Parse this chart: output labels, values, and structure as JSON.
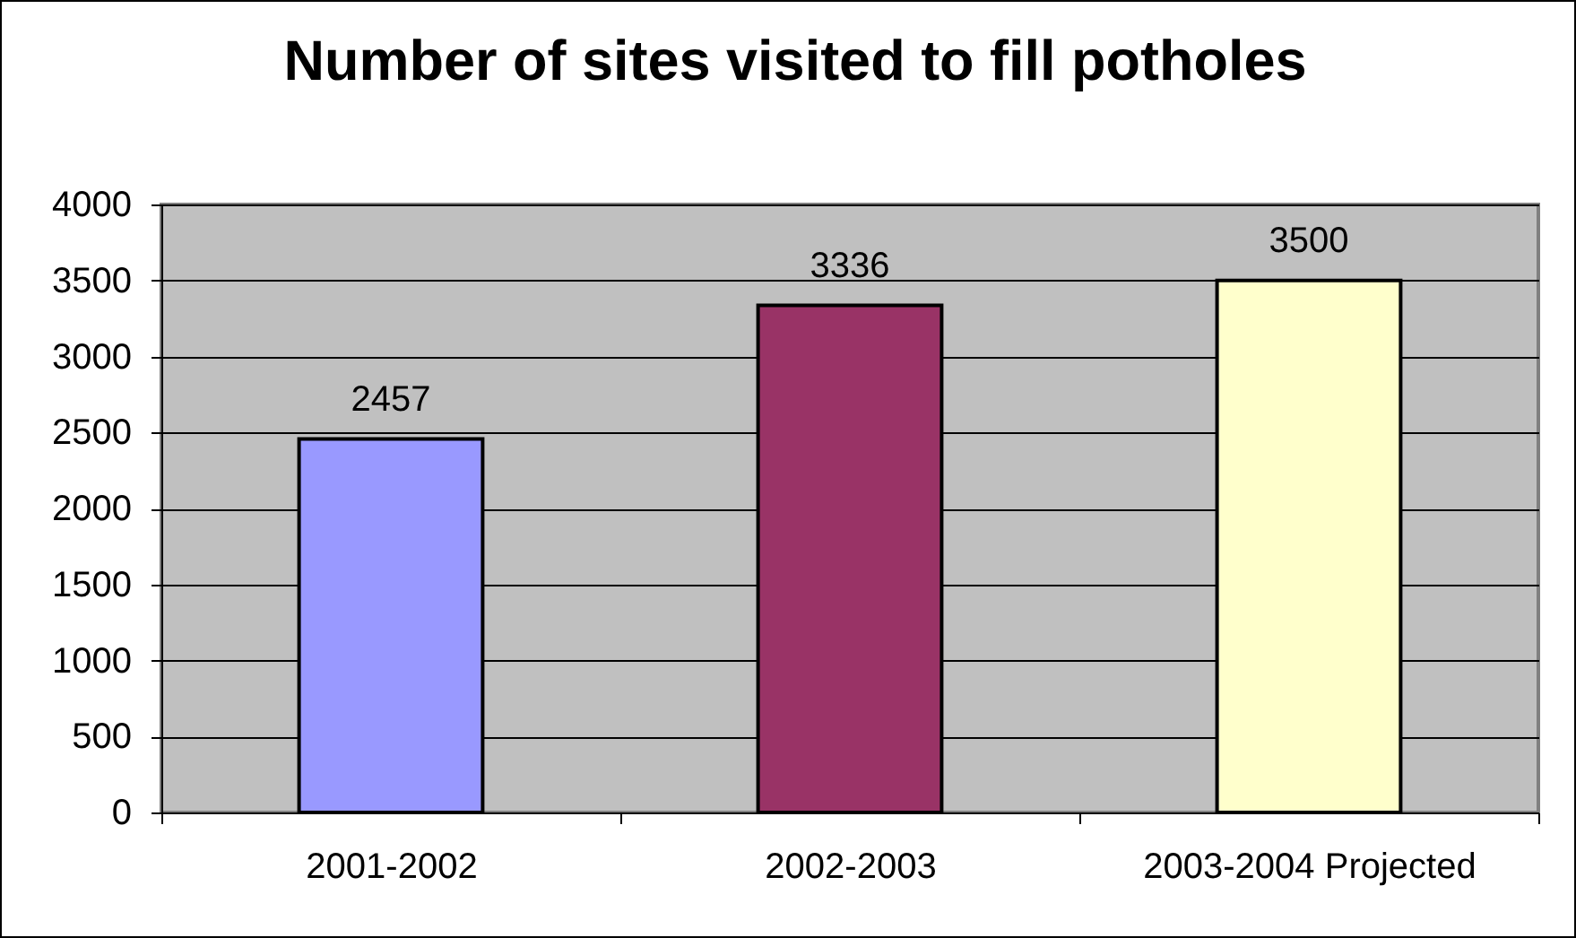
{
  "chart_data": {
    "type": "bar",
    "title": "Number of sites visited to fill potholes",
    "categories": [
      "2001-2002",
      "2002-2003",
      "2003-2004 Projected"
    ],
    "values": [
      2457,
      3336,
      3500
    ],
    "colors": [
      "#9999ff",
      "#993366",
      "#ffffcc"
    ],
    "ylim": [
      0,
      4000
    ],
    "yticks": [
      0,
      500,
      1000,
      1500,
      2000,
      2500,
      3000,
      3500,
      4000
    ],
    "grid": "y",
    "data_labels": true
  }
}
